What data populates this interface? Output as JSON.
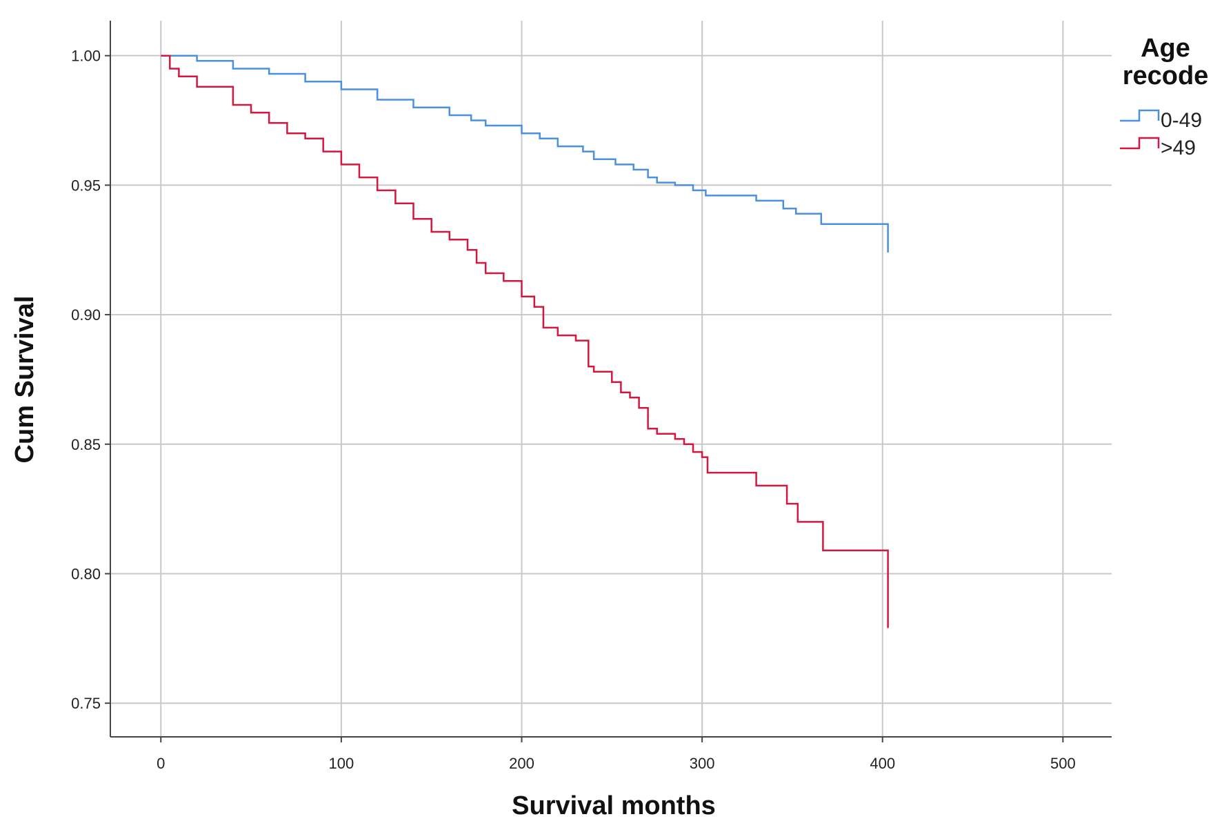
{
  "chart_data": {
    "type": "line",
    "title": "",
    "xlabel": "Survival months",
    "ylabel": "Cum Survival",
    "xlim": [
      -28,
      527
    ],
    "ylim": [
      0.737,
      1.0135
    ],
    "x_ticks": [
      0,
      100,
      200,
      300,
      400,
      500
    ],
    "x_tick_labels": [
      "0",
      "100",
      "200",
      "300",
      "400",
      "500"
    ],
    "y_ticks": [
      0.75,
      0.8,
      0.85,
      0.9,
      0.95,
      1.0
    ],
    "y_tick_labels": [
      "0.75",
      "0.80",
      "0.85",
      "0.90",
      "0.95",
      "1.00"
    ],
    "grid": true,
    "legend": {
      "title_lines": [
        "Age",
        "recode"
      ],
      "placement": "top-right outside"
    },
    "series": [
      {
        "name": "0-49",
        "color": "#4a8fe0",
        "step": true,
        "x": [
          0,
          20,
          40,
          60,
          80,
          100,
          120,
          140,
          160,
          172,
          180,
          200,
          210,
          220,
          234,
          240,
          252,
          262,
          270,
          275,
          285,
          295,
          302,
          310,
          330,
          345,
          352,
          366,
          380,
          400,
          402,
          403
        ],
        "y": [
          1.0,
          0.998,
          0.995,
          0.993,
          0.99,
          0.987,
          0.983,
          0.98,
          0.977,
          0.975,
          0.973,
          0.97,
          0.968,
          0.965,
          0.963,
          0.96,
          0.958,
          0.956,
          0.953,
          0.951,
          0.95,
          0.948,
          0.946,
          0.946,
          0.944,
          0.941,
          0.939,
          0.935,
          0.935,
          0.935,
          0.935,
          0.924
        ]
      },
      {
        "name": ">49",
        "color": "#d6163e",
        "step": true,
        "x": [
          0,
          5,
          10,
          20,
          40,
          50,
          60,
          70,
          80,
          90,
          100,
          110,
          120,
          130,
          140,
          150,
          160,
          170,
          175,
          180,
          190,
          200,
          207,
          212,
          220,
          230,
          237,
          240,
          250,
          255,
          260,
          265,
          270,
          275,
          285,
          290,
          295,
          300,
          303,
          330,
          347,
          353,
          367,
          400,
          403
        ],
        "y": [
          1.0,
          0.995,
          0.992,
          0.988,
          0.981,
          0.978,
          0.974,
          0.97,
          0.968,
          0.963,
          0.958,
          0.953,
          0.948,
          0.943,
          0.937,
          0.932,
          0.929,
          0.925,
          0.92,
          0.916,
          0.913,
          0.907,
          0.903,
          0.895,
          0.892,
          0.89,
          0.88,
          0.878,
          0.874,
          0.87,
          0.868,
          0.864,
          0.856,
          0.854,
          0.852,
          0.85,
          0.847,
          0.845,
          0.839,
          0.834,
          0.827,
          0.82,
          0.809,
          0.809,
          0.779
        ]
      }
    ]
  }
}
